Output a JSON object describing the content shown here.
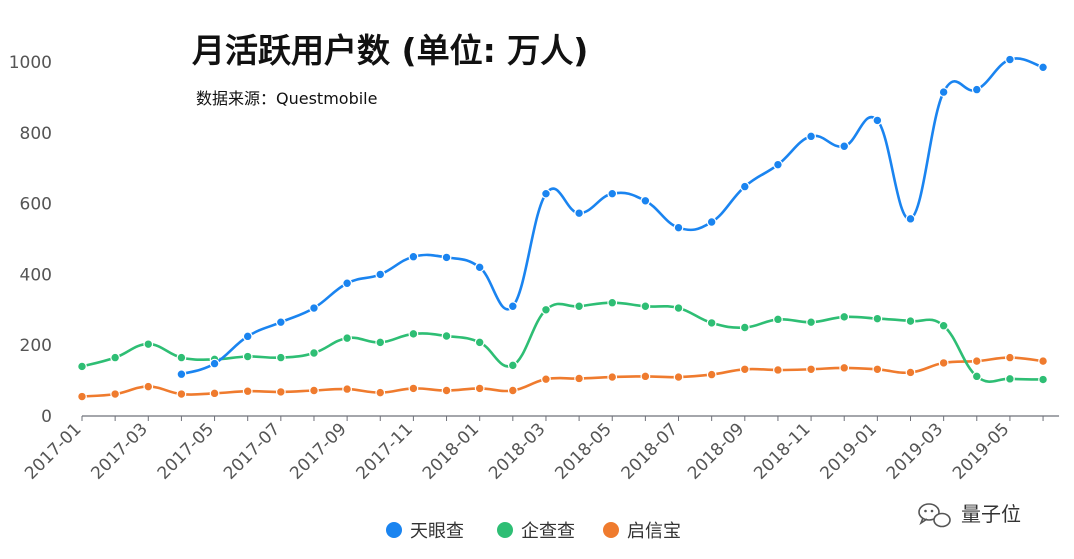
{
  "chart_data": {
    "type": "line",
    "title": "月活跃用户数 (单位: 万人)",
    "subtitle": "数据来源：Questmobile",
    "ylim": [
      0,
      1000
    ],
    "yticks": [
      "0",
      "200",
      "400",
      "600",
      "800",
      "1000"
    ],
    "x": [
      "2017-01",
      "2017-02",
      "2017-03",
      "2017-04",
      "2017-05",
      "2017-06",
      "2017-07",
      "2017-08",
      "2017-09",
      "2017-10",
      "2017-11",
      "2017-12",
      "2018-01",
      "2018-02",
      "2018-03",
      "2018-04",
      "2018-05",
      "2018-06",
      "2018-07",
      "2018-08",
      "2018-09",
      "2018-10",
      "2018-11",
      "2018-12",
      "2019-01",
      "2019-02",
      "2019-03",
      "2019-04",
      "2019-05",
      "2019-06"
    ],
    "xtick_labels": [
      "2017-01",
      "2017-03",
      "2017-05",
      "2017-07",
      "2017-09",
      "2017-11",
      "2018-01",
      "2018-03",
      "2018-05",
      "2018-07",
      "2018-09",
      "2018-11",
      "2019-01",
      "2019-03",
      "2019-05"
    ],
    "legend_position": "bottom",
    "grid": false,
    "series": [
      {
        "name": "天眼查",
        "color": "#1a84f0",
        "values": [
          null,
          null,
          null,
          118,
          148,
          225,
          265,
          305,
          375,
          400,
          450,
          448,
          420,
          310,
          628,
          573,
          628,
          608,
          532,
          548,
          648,
          710,
          790,
          762,
          835,
          557,
          915,
          922,
          1007,
          985
        ]
      },
      {
        "name": "企查查",
        "color": "#2ebe74",
        "values": [
          140,
          165,
          203,
          165,
          160,
          168,
          165,
          178,
          220,
          208,
          232,
          226,
          208,
          143,
          300,
          310,
          320,
          310,
          305,
          263,
          250,
          273,
          265,
          280,
          275,
          268,
          255,
          112,
          105,
          103
        ]
      },
      {
        "name": "启信宝",
        "color": "#ef7b2e",
        "values": [
          55,
          62,
          83,
          62,
          64,
          70,
          68,
          72,
          76,
          66,
          78,
          72,
          78,
          72,
          104,
          106,
          110,
          112,
          110,
          117,
          132,
          130,
          132,
          136,
          132,
          123,
          150,
          155,
          165,
          155
        ]
      }
    ]
  },
  "watermark": {
    "text": "量子位",
    "icon": "wechat-chat-icon"
  }
}
